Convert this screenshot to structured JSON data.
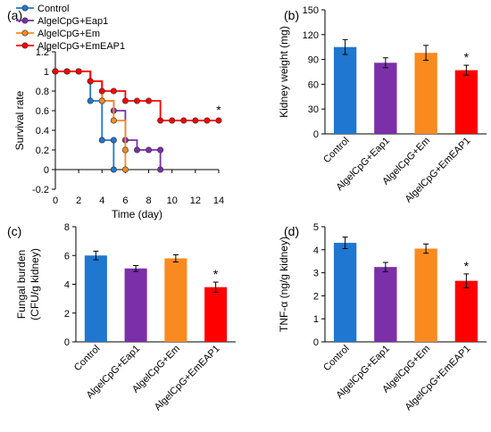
{
  "colors": {
    "control": "#1f77d0",
    "eap1": "#7b2fa8",
    "em": "#f98a1f",
    "emeap1": "#ff0000"
  },
  "chart_data": [
    {
      "panel": "(a)",
      "type": "line",
      "xlabel": "Time (day)",
      "ylabel": "Survival rate",
      "xlim": [
        0,
        14
      ],
      "ylim": [
        -0.2,
        1.2
      ],
      "xticks": [
        "0",
        "2",
        "4",
        "6",
        "8",
        "10",
        "12",
        "14"
      ],
      "yticks": [
        "-0.2",
        "0",
        "0.2",
        "0.4",
        "0.6",
        "0.8",
        "1",
        "1.2"
      ],
      "step": true,
      "series": [
        {
          "name": "Control",
          "color": "#1f77d0",
          "x": [
            0,
            1,
            2,
            3,
            4,
            5,
            5
          ],
          "y": [
            1,
            1,
            1,
            0.7,
            0.3,
            0.3,
            0
          ]
        },
        {
          "name": "AlgelCpG+Eap1",
          "color": "#7b2fa8",
          "x": [
            0,
            1,
            2,
            3,
            4,
            5,
            6,
            7,
            8,
            9,
            9
          ],
          "y": [
            1,
            1,
            1,
            0.9,
            0.7,
            0.6,
            0.3,
            0.2,
            0.2,
            0.2,
            0
          ]
        },
        {
          "name": "AlgelCpG+Em",
          "color": "#f98a1f",
          "x": [
            0,
            1,
            2,
            3,
            4,
            5,
            6,
            6
          ],
          "y": [
            1,
            1,
            1,
            0.9,
            0.7,
            0.5,
            0.2,
            0
          ]
        },
        {
          "name": "AlgelCpG+EmEAP1",
          "color": "#ff0000",
          "x": [
            0,
            1,
            2,
            3,
            4,
            5,
            6,
            7,
            8,
            9,
            10,
            11,
            12,
            13,
            14
          ],
          "y": [
            1,
            1,
            1,
            0.9,
            0.8,
            0.8,
            0.7,
            0.7,
            0.7,
            0.5,
            0.5,
            0.5,
            0.5,
            0.5,
            0.5
          ]
        }
      ],
      "annotations": [
        {
          "text": "*",
          "x": 14,
          "y": 0.5
        }
      ],
      "legend": "top-left"
    },
    {
      "panel": "(b)",
      "type": "bar",
      "ylabel": "Kidney weight (mg)",
      "ylim": [
        0,
        150
      ],
      "yticks": [
        "0",
        "30",
        "60",
        "90",
        "120",
        "150"
      ],
      "categories": [
        "Control",
        "AlgelCpG+Eap1",
        "AlgelCpG+Em",
        "AlgelCpG+EmEAP1"
      ],
      "values": [
        105,
        86,
        98,
        77
      ],
      "errors": [
        9,
        6,
        9,
        6
      ],
      "colors": [
        "#1f77d0",
        "#7b2fa8",
        "#f98a1f",
        "#ff0000"
      ],
      "annotations": [
        {
          "text": "*",
          "category": "AlgelCpG+EmEAP1"
        }
      ]
    },
    {
      "panel": "(c)",
      "type": "bar",
      "ylabel": "Fungal burden (CFU/g kidney)",
      "ylabel_lines": [
        "Fungal burden",
        "(CFU/g kidney)"
      ],
      "ylim": [
        0,
        8
      ],
      "yticks": [
        "0",
        "2",
        "4",
        "6",
        "8"
      ],
      "categories": [
        "Control",
        "AlgelCpG+Eap1",
        "AlgelCpG+Em",
        "AlgelCpG+EmEAP1"
      ],
      "values": [
        6.0,
        5.1,
        5.8,
        3.8
      ],
      "errors": [
        0.3,
        0.2,
        0.25,
        0.35
      ],
      "colors": [
        "#1f77d0",
        "#7b2fa8",
        "#f98a1f",
        "#ff0000"
      ],
      "annotations": [
        {
          "text": "*",
          "category": "AlgelCpG+EmEAP1"
        }
      ]
    },
    {
      "panel": "(d)",
      "type": "bar",
      "ylabel": "TNF-α (ng/g kidney)",
      "ylim": [
        0,
        5
      ],
      "yticks": [
        "0",
        "1",
        "2",
        "3",
        "4",
        "5"
      ],
      "categories": [
        "Control",
        "AlgelCpG+Eap1",
        "AlgelCpG+Em",
        "AlgelCpG+EmEAP1"
      ],
      "values": [
        4.3,
        3.25,
        4.05,
        2.65
      ],
      "errors": [
        0.25,
        0.2,
        0.2,
        0.3
      ],
      "colors": [
        "#1f77d0",
        "#7b2fa8",
        "#f98a1f",
        "#ff0000"
      ],
      "annotations": [
        {
          "text": "*",
          "category": "AlgelCpG+EmEAP1"
        }
      ]
    }
  ]
}
